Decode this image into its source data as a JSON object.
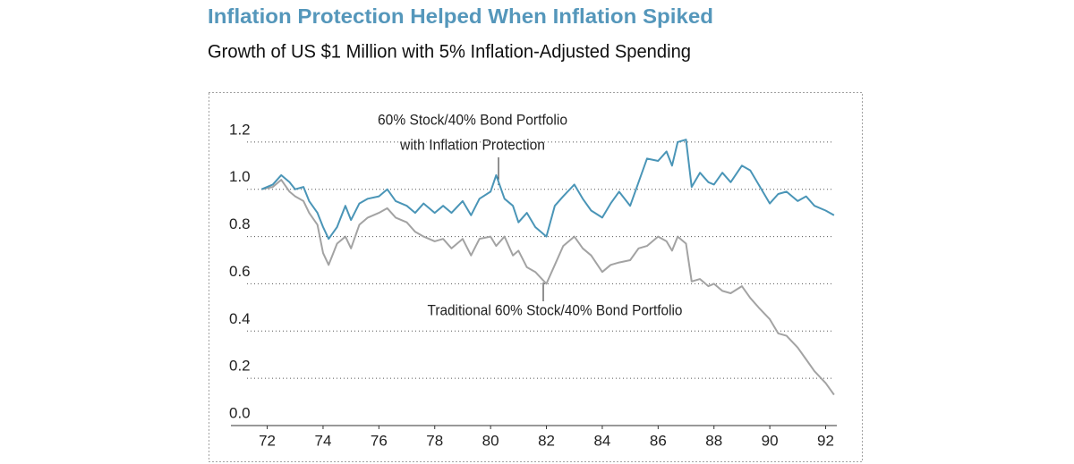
{
  "chart_data": {
    "type": "line",
    "title": "Inflation Protection Helped When Inflation Spiked",
    "subtitle": "Growth of US $1 Million with 5% Inflation-Adjusted Spending",
    "annotations": [
      "60% Stock/40% Bond Portfolio",
      "with Inflation Protection",
      "Traditional 60% Stock/40% Bond Portfolio"
    ],
    "x": [
      71.8,
      72.2,
      72.5,
      72.8,
      73,
      73.3,
      73.5,
      73.8,
      74,
      74.2,
      74.5,
      74.8,
      75,
      75.3,
      75.6,
      76,
      76.3,
      76.6,
      77,
      77.3,
      77.6,
      78,
      78.3,
      78.6,
      79,
      79.3,
      79.6,
      80,
      80.2,
      80.5,
      80.8,
      81,
      81.3,
      81.6,
      82,
      82.3,
      82.6,
      83,
      83.3,
      83.6,
      84,
      84.3,
      84.6,
      85,
      85.3,
      85.6,
      86,
      86.3,
      86.5,
      86.7,
      87,
      87.2,
      87.5,
      87.8,
      88,
      88.3,
      88.6,
      89,
      89.3,
      89.6,
      90,
      90.3,
      90.6,
      91,
      91.3,
      91.6,
      92,
      92.3
    ],
    "series": [
      {
        "color": "#4a95b7",
        "values": [
          1.0,
          1.02,
          1.06,
          1.03,
          1.0,
          1.01,
          0.95,
          0.9,
          0.84,
          0.79,
          0.84,
          0.93,
          0.87,
          0.94,
          0.96,
          0.97,
          1.0,
          0.95,
          0.93,
          0.9,
          0.94,
          0.9,
          0.93,
          0.9,
          0.95,
          0.89,
          0.96,
          0.99,
          1.06,
          0.96,
          0.93,
          0.86,
          0.9,
          0.84,
          0.8,
          0.93,
          0.97,
          1.02,
          0.96,
          0.91,
          0.88,
          0.94,
          0.99,
          0.93,
          1.03,
          1.13,
          1.12,
          1.16,
          1.1,
          1.2,
          1.21,
          1.01,
          1.07,
          1.03,
          1.02,
          1.07,
          1.03,
          1.1,
          1.08,
          1.02,
          0.94,
          0.98,
          0.99,
          0.95,
          0.97,
          0.93,
          0.91,
          0.89
        ]
      },
      {
        "color": "#a3a3a3",
        "values": [
          1.0,
          1.01,
          1.04,
          0.99,
          0.97,
          0.95,
          0.9,
          0.85,
          0.73,
          0.68,
          0.77,
          0.8,
          0.75,
          0.85,
          0.88,
          0.9,
          0.92,
          0.88,
          0.86,
          0.82,
          0.8,
          0.78,
          0.79,
          0.75,
          0.79,
          0.72,
          0.79,
          0.8,
          0.76,
          0.8,
          0.72,
          0.74,
          0.67,
          0.65,
          0.6,
          0.68,
          0.76,
          0.8,
          0.75,
          0.72,
          0.65,
          0.68,
          0.69,
          0.7,
          0.75,
          0.76,
          0.8,
          0.78,
          0.74,
          0.8,
          0.77,
          0.61,
          0.62,
          0.59,
          0.6,
          0.57,
          0.56,
          0.59,
          0.54,
          0.5,
          0.45,
          0.39,
          0.38,
          0.33,
          0.28,
          0.23,
          0.18,
          0.13
        ]
      }
    ],
    "xlim": [
      70.7,
      92.4
    ],
    "xticks": [
      72,
      74,
      76,
      78,
      80,
      82,
      84,
      86,
      88,
      90,
      92
    ],
    "ylim": [
      0,
      1.4
    ],
    "yticks": [
      {
        "value": 0,
        "label": "0.0"
      },
      0.2,
      0.4,
      0.6,
      0.8,
      {
        "value": 1,
        "label": "1.0"
      },
      1.2
    ],
    "grid": true
  }
}
